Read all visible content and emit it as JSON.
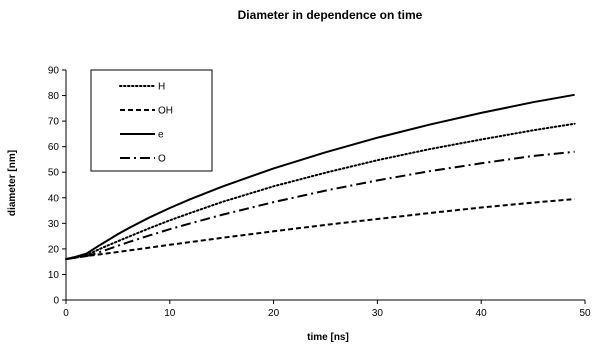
{
  "chart_data": {
    "type": "line",
    "title": "Diameter in dependence on time",
    "xlabel": "time [ns]",
    "ylabel": "diameter [nm]",
    "xlim": [
      0,
      50
    ],
    "ylim": [
      0,
      90
    ],
    "xticks": [
      0,
      10,
      20,
      30,
      40,
      50
    ],
    "yticks": [
      0,
      10,
      20,
      30,
      40,
      50,
      60,
      70,
      80,
      90
    ],
    "grid": false,
    "legend_position": "top-left",
    "line_color": "#000000",
    "series": [
      {
        "name": "H",
        "style": "dotted",
        "x": [
          0,
          1,
          2,
          3,
          4,
          5,
          6,
          8,
          10,
          12,
          15,
          20,
          25,
          30,
          35,
          40,
          45,
          49
        ],
        "y": [
          16,
          16.8,
          17.6,
          19.5,
          21.3,
          23.0,
          24.7,
          28.0,
          31.2,
          34.1,
          38.3,
          44.5,
          49.8,
          54.7,
          59.0,
          62.8,
          66.4,
          69
        ]
      },
      {
        "name": "OH",
        "style": "dashed",
        "x": [
          0,
          2,
          5,
          10,
          15,
          20,
          25,
          30,
          35,
          40,
          45,
          49
        ],
        "y": [
          16,
          17.2,
          18.8,
          21.6,
          24.3,
          26.9,
          29.4,
          31.7,
          34.0,
          36.2,
          38.1,
          39.5
        ]
      },
      {
        "name": "e",
        "style": "solid",
        "x": [
          0,
          1,
          2,
          3,
          4,
          5,
          6,
          8,
          10,
          12,
          15,
          20,
          25,
          30,
          35,
          40,
          45,
          49
        ],
        "y": [
          16,
          17.0,
          18.2,
          20.8,
          23.3,
          25.8,
          28.0,
          32.2,
          36.0,
          39.5,
          44.3,
          51.5,
          57.8,
          63.5,
          68.6,
          73.2,
          77.4,
          80.3
        ]
      },
      {
        "name": "O",
        "style": "dash-dot",
        "x": [
          0,
          2,
          3,
          4,
          5,
          6,
          8,
          10,
          12,
          15,
          20,
          25,
          30,
          35,
          40,
          45,
          49
        ],
        "y": [
          16,
          17.2,
          18.4,
          19.8,
          21.2,
          22.6,
          25.2,
          27.7,
          30.0,
          33.3,
          38.3,
          42.8,
          46.8,
          50.4,
          53.5,
          56.4,
          58
        ]
      }
    ]
  }
}
